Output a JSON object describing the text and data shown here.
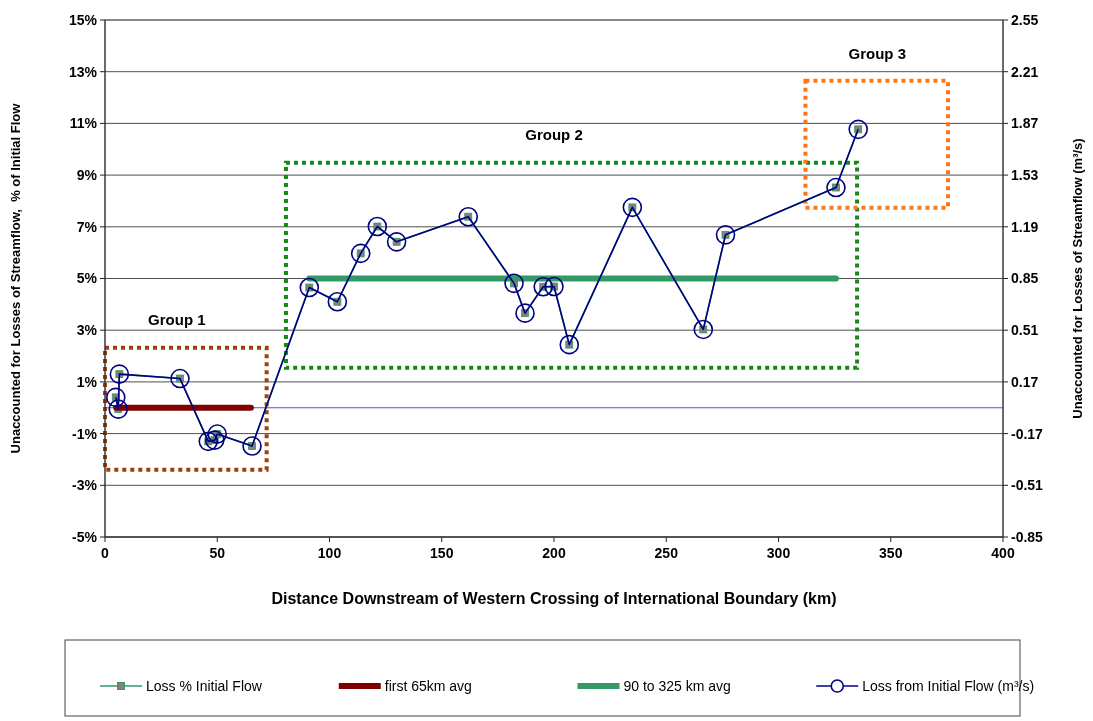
{
  "chart_data": {
    "type": "line",
    "xlabel": "Distance Downstream of Western Crossing of International Boundary (km)",
    "ylabel": "Unaccounted for Losses of Streamflow,  % of Initial Flow",
    "y2label": "Unaccounted for Losses of Streamflow (m³/s)",
    "xlim": [
      0,
      400
    ],
    "xticks": [
      0,
      50,
      100,
      150,
      200,
      250,
      300,
      350,
      400
    ],
    "ylim": [
      -5,
      15
    ],
    "yticks": [
      {
        "value": -5,
        "label": "-5%"
      },
      {
        "value": -3,
        "label": "-3%"
      },
      {
        "value": -1,
        "label": "-1%"
      },
      {
        "value": 1,
        "label": "1%"
      },
      {
        "value": 3,
        "label": "3%"
      },
      {
        "value": 5,
        "label": "5%"
      },
      {
        "value": 7,
        "label": "7%"
      },
      {
        "value": 9,
        "label": "9%"
      },
      {
        "value": 11,
        "label": "11%"
      },
      {
        "value": 13,
        "label": "13%"
      },
      {
        "value": 15,
        "label": "15%"
      }
    ],
    "y2lim": [
      -0.85,
      2.55
    ],
    "y2ticks": [
      -0.85,
      -0.51,
      -0.17,
      0.17,
      0.51,
      0.85,
      1.19,
      1.53,
      1.87,
      2.21,
      2.55
    ],
    "grid": "y",
    "legend": "bottom",
    "ref_lines": [
      {
        "axis": "y",
        "value": 0,
        "color": "#5555cc"
      }
    ],
    "annotations": [
      "Group 1",
      "Group 2",
      "Group 3"
    ],
    "series": [
      {
        "name": "Loss % Initial Flow",
        "color": "#339966",
        "marker": "square",
        "x": [
          4.8,
          5.9,
          6.4,
          33.4,
          46,
          48.9,
          50,
          65.5,
          91,
          103.5,
          113.9,
          121.3,
          129.9,
          161.8,
          182.2,
          187.1,
          195.2,
          200,
          206.8,
          234.9,
          266.5,
          276.4,
          325.6,
          335.5
        ],
        "values": [
          0.4,
          -0.05,
          1.3,
          1.13,
          -1.3,
          -1.25,
          -1.02,
          -1.48,
          4.65,
          4.1,
          5.97,
          7.01,
          6.42,
          7.39,
          4.81,
          3.66,
          4.68,
          4.69,
          2.44,
          7.75,
          3.03,
          6.69,
          8.52,
          10.77
        ]
      },
      {
        "name": "first 65km avg",
        "color": "#800000",
        "marker": "none",
        "x": [
          5,
          65
        ],
        "values": [
          0,
          0
        ]
      },
      {
        "name": "90 to 325 km avg",
        "color": "#339966",
        "marker": "none",
        "x": [
          91,
          325.6
        ],
        "values": [
          5,
          5
        ]
      },
      {
        "name": "Loss from Initial Flow (m³/s)",
        "color": "#000080",
        "marker": "circle",
        "axis": "y2",
        "x": [
          4.8,
          5.9,
          6.4,
          33.4,
          46,
          48.9,
          50,
          65.5,
          91,
          103.5,
          113.9,
          121.3,
          129.9,
          161.8,
          182.2,
          187.1,
          195.2,
          200,
          206.8,
          234.9,
          266.5,
          276.4,
          325.6,
          335.5
        ],
        "values": [
          0.068,
          -0.009,
          0.221,
          0.192,
          -0.221,
          -0.213,
          -0.173,
          -0.252,
          0.791,
          0.697,
          1.015,
          1.192,
          1.091,
          1.256,
          0.818,
          0.622,
          0.796,
          0.797,
          0.415,
          1.318,
          0.515,
          1.137,
          1.448,
          1.831
        ]
      }
    ]
  }
}
